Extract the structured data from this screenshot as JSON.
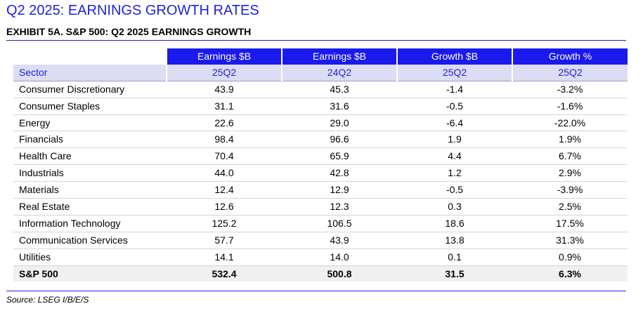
{
  "title": "Q2 2025: EARNINGS GROWTH RATES",
  "subtitle": "EXHIBIT 5A.  S&P 500: Q2 2025 EARNINGS GROWTH",
  "source": "Source: LSEG I/B/E/S",
  "colors": {
    "accent": "#1f1fe0",
    "header_bg": "#1a1aee",
    "subheader_bg": "#dcdcf2"
  },
  "table": {
    "headers": [
      "Earnings $B",
      "Earnings $B",
      "Growth $B",
      "Growth %"
    ],
    "sector_label": "Sector",
    "periods": [
      "25Q2",
      "24Q2",
      "25Q2",
      "25Q2"
    ],
    "rows": [
      {
        "sector": "Consumer Discretionary",
        "values": [
          "43.9",
          "45.3",
          "-1.4",
          "-3.2%"
        ]
      },
      {
        "sector": "Consumer Staples",
        "values": [
          "31.1",
          "31.6",
          "-0.5",
          "-1.6%"
        ]
      },
      {
        "sector": "Energy",
        "values": [
          "22.6",
          "29.0",
          "-6.4",
          "-22.0%"
        ]
      },
      {
        "sector": "Financials",
        "values": [
          "98.4",
          "96.6",
          "1.9",
          "1.9%"
        ]
      },
      {
        "sector": "Health Care",
        "values": [
          "70.4",
          "65.9",
          "4.4",
          "6.7%"
        ]
      },
      {
        "sector": "Industrials",
        "values": [
          "44.0",
          "42.8",
          "1.2",
          "2.9%"
        ]
      },
      {
        "sector": "Materials",
        "values": [
          "12.4",
          "12.9",
          "-0.5",
          "-3.9%"
        ]
      },
      {
        "sector": "Real Estate",
        "values": [
          "12.6",
          "12.3",
          "0.3",
          "2.5%"
        ]
      },
      {
        "sector": "Information Technology",
        "values": [
          "125.2",
          "106.5",
          "18.6",
          "17.5%"
        ]
      },
      {
        "sector": "Communication Services",
        "values": [
          "57.7",
          "43.9",
          "13.8",
          "31.3%"
        ]
      },
      {
        "sector": "Utilities",
        "values": [
          "14.1",
          "14.0",
          "0.1",
          "0.9%"
        ]
      }
    ],
    "total": {
      "sector": "S&P 500",
      "values": [
        "532.4",
        "500.8",
        "31.5",
        "6.3%"
      ]
    }
  }
}
